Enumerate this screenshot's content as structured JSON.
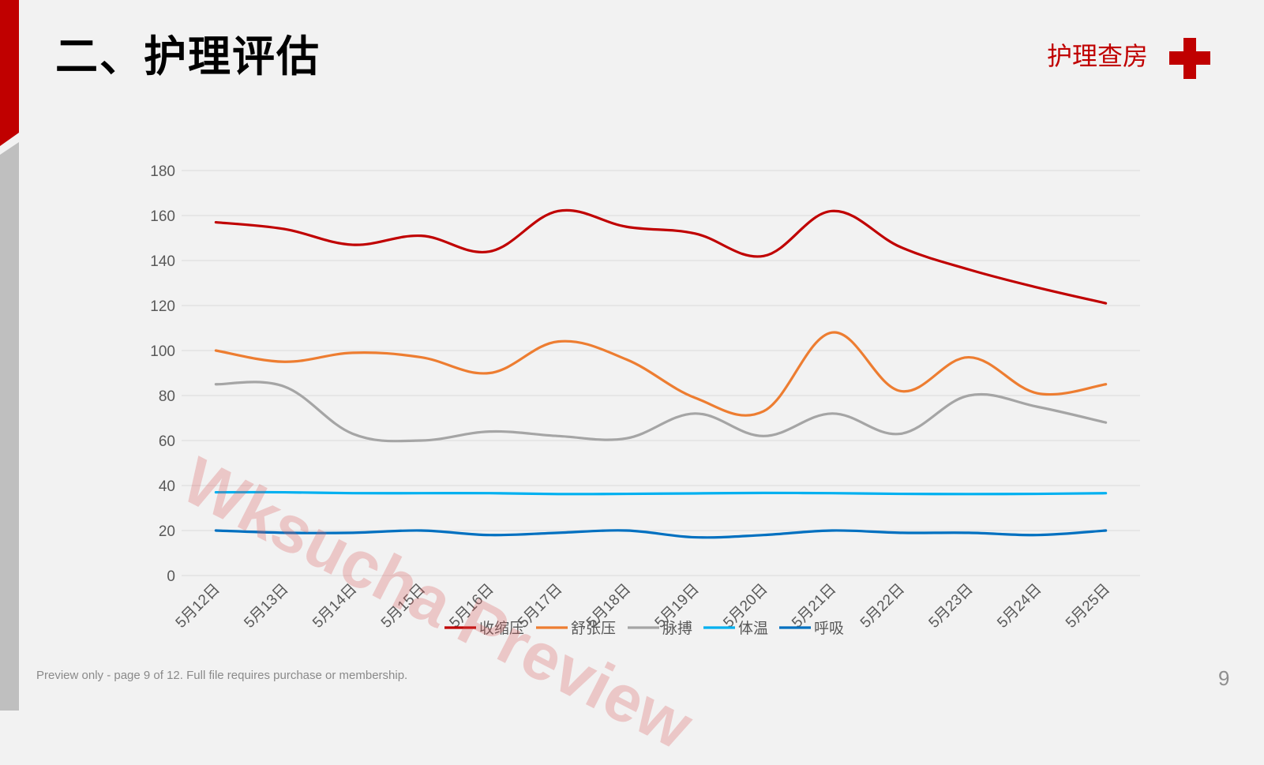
{
  "slide": {
    "title": "二、护理评估",
    "brand": "护理查房",
    "footer_note": "Preview only - page 9 of 12. Full file requires purchase or membership.",
    "page_number": "9",
    "watermark": "Wksucha Preview"
  },
  "colors": {
    "accent_red": "#c00000",
    "left_bar_gray": "#bfbfbf",
    "background": "#f2f2f2"
  },
  "icons": {
    "brand_icon": "medical-cross-icon"
  },
  "chart_data": {
    "type": "line",
    "smooth": true,
    "categories": [
      "5月12日",
      "5月13日",
      "5月14日",
      "5月15日",
      "5月16日",
      "5月17日",
      "5月18日",
      "5月19日",
      "5月20日",
      "5月21日",
      "5月22日",
      "5月23日",
      "5月24日",
      "5月25日"
    ],
    "series": [
      {
        "name": "收缩压",
        "color": "#c00000",
        "values": [
          157,
          154,
          147,
          151,
          144,
          162,
          155,
          152,
          142,
          162,
          146,
          136,
          128,
          121
        ]
      },
      {
        "name": "舒张压",
        "color": "#ed7d31",
        "values": [
          100,
          95,
          99,
          97,
          90,
          104,
          96,
          79,
          73,
          108,
          82,
          97,
          81,
          85
        ]
      },
      {
        "name": "脉搏",
        "color": "#a5a5a5",
        "values": [
          85,
          84,
          63,
          60,
          64,
          62,
          61,
          72,
          62,
          72,
          63,
          80,
          75,
          68
        ]
      },
      {
        "name": "体温",
        "color": "#00b0f0",
        "values": [
          37,
          37,
          36.6,
          36.6,
          36.6,
          36.2,
          36.3,
          36.5,
          36.7,
          36.6,
          36.3,
          36.2,
          36.3,
          36.6
        ]
      },
      {
        "name": "呼吸",
        "color": "#0070c0",
        "values": [
          20,
          19,
          19,
          20,
          18,
          19,
          20,
          17,
          18,
          20,
          19,
          19,
          18,
          20
        ]
      }
    ],
    "ylim": [
      0,
      180
    ],
    "yticks": [
      0,
      20,
      40,
      60,
      80,
      100,
      120,
      140,
      160,
      180
    ],
    "grid": true,
    "legend_position": "bottom"
  }
}
